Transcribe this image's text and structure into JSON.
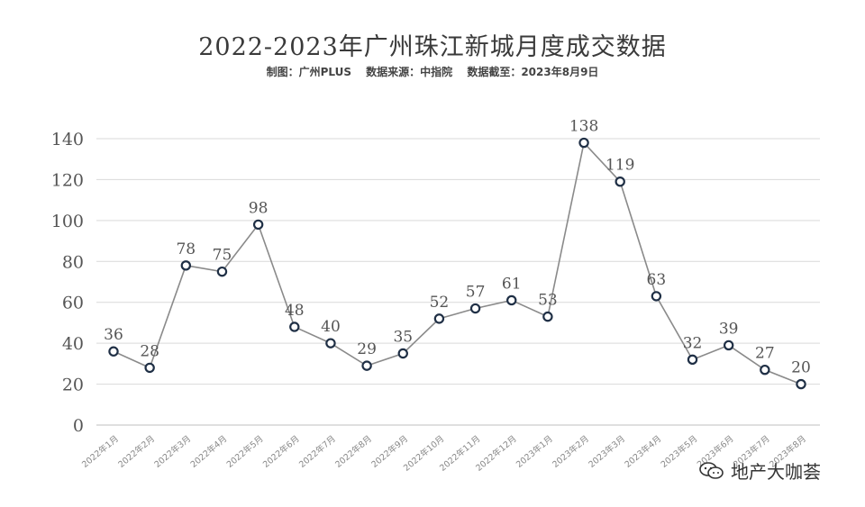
{
  "title": "2022-2023年广州珠江新城月度成交数据",
  "subtitle": "制图：广州PLUS　 数据来源：中指院　 数据截至：2023年8月9日",
  "watermark": "地产大咖荟",
  "chart_data": {
    "type": "line",
    "categories": [
      "2022年1月",
      "2022年2月",
      "2022年3月",
      "2022年4月",
      "2022年5月",
      "2022年6月",
      "2022年7月",
      "2022年8月",
      "2022年9月",
      "2022年10月",
      "2022年11月",
      "2022年12月",
      "2023年1月",
      "2023年2月",
      "2023年3月",
      "2023年4月",
      "2023年5月",
      "2023年6月",
      "2023年7月",
      "2023年8月"
    ],
    "values": [
      36,
      28,
      78,
      75,
      98,
      48,
      40,
      29,
      35,
      52,
      57,
      61,
      53,
      138,
      119,
      63,
      32,
      39,
      27,
      20
    ],
    "title": "2022-2023年广州珠江新城月度成交数据",
    "ylim": [
      0,
      140
    ],
    "yticks": [
      0,
      20,
      40,
      60,
      80,
      100,
      120,
      140
    ],
    "grid": true,
    "colors": {
      "line": "#8a8a8a",
      "marker_edge": "#1f2f45",
      "grid": "#d9d9d9",
      "axis": "#bfbfbf",
      "text": "#555555"
    }
  }
}
